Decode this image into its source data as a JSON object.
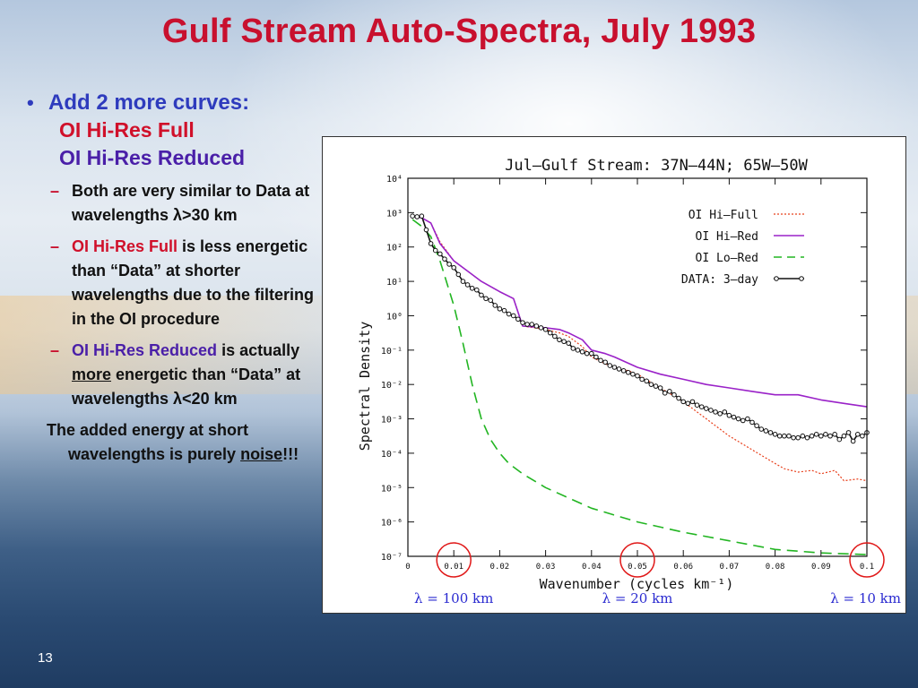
{
  "slide": {
    "title": "Gulf Stream Auto-Spectra, July 1993",
    "bullet1": "Add 2 more curves:",
    "curve_full": "OI Hi-Res Full",
    "curve_reduced": "OI Hi-Res Reduced",
    "sub1_text": "Both are very similar to Data at wavelengths λ>30 km",
    "sub2_lead": "OI Hi-Res Full",
    "sub2_text": "is less energetic than “Data” at shorter wavelengths due to the filtering in the OI procedure",
    "sub3_lead": "OI Hi-Res Reduced",
    "sub3_text_a": "is actually",
    "sub3_emph": "more",
    "sub3_text_b": "energetic than “Data” at wavelengths λ<20 km",
    "final_a": "The added energy at short wavelengths is purely",
    "final_emph": "noise",
    "final_b": "!!!",
    "page_number": "13"
  },
  "chart_data": {
    "type": "line",
    "title": "Jul–Gulf Stream: 37N–44N; 65W–50W",
    "xlabel": "Wavenumber (cycles km⁻¹)",
    "ylabel": "Spectral Density",
    "xlim": [
      0,
      0.1
    ],
    "ylim_exp": [
      -7,
      4
    ],
    "yscale": "log",
    "xticks": [
      "0",
      "0.01",
      "0.02",
      "0.03",
      "0.04",
      "0.05",
      "0.06",
      "0.07",
      "0.08",
      "0.09",
      "0.1"
    ],
    "yticks": [
      "10⁻⁷",
      "10⁻⁶",
      "10⁻⁵",
      "10⁻⁴",
      "10⁻³",
      "10⁻²",
      "10⁻¹",
      "10⁰",
      "10¹",
      "10²",
      "10³",
      "10⁴"
    ],
    "legend_placement": "top-right",
    "series": [
      {
        "name": "OI Hi–Full",
        "color": "#e8401c",
        "style": "dotted",
        "x": [
          0.001,
          0.003,
          0.005,
          0.007,
          0.01,
          0.013,
          0.016,
          0.02,
          0.023,
          0.025,
          0.03,
          0.033,
          0.035,
          0.038,
          0.04,
          0.043,
          0.045,
          0.048,
          0.05,
          0.055,
          0.06,
          0.065,
          0.07,
          0.075,
          0.08,
          0.082,
          0.085,
          0.088,
          0.09,
          0.093,
          0.095,
          0.098,
          0.1
        ],
        "y_exp": [
          2.9,
          2.85,
          2.7,
          2.15,
          1.6,
          1.3,
          1.0,
          0.7,
          0.5,
          -0.3,
          -0.4,
          -0.5,
          -0.6,
          -0.9,
          -1.2,
          -1.4,
          -1.5,
          -1.6,
          -1.7,
          -2.1,
          -2.5,
          -3.0,
          -3.5,
          -3.9,
          -4.3,
          -4.45,
          -4.55,
          -4.5,
          -4.6,
          -4.5,
          -4.8,
          -4.75,
          -4.8
        ]
      },
      {
        "name": "OI Hi–Red",
        "color": "#9a22c8",
        "style": "solid",
        "x": [
          0.001,
          0.003,
          0.005,
          0.007,
          0.01,
          0.013,
          0.016,
          0.02,
          0.023,
          0.025,
          0.03,
          0.033,
          0.035,
          0.038,
          0.04,
          0.043,
          0.045,
          0.05,
          0.055,
          0.06,
          0.065,
          0.07,
          0.075,
          0.08,
          0.085,
          0.09,
          0.095,
          0.1
        ],
        "y_exp": [
          2.9,
          2.85,
          2.7,
          2.1,
          1.6,
          1.3,
          1.0,
          0.7,
          0.5,
          -0.3,
          -0.35,
          -0.4,
          -0.5,
          -0.7,
          -1.0,
          -1.1,
          -1.2,
          -1.5,
          -1.7,
          -1.85,
          -2.0,
          -2.1,
          -2.2,
          -2.3,
          -2.3,
          -2.45,
          -2.55,
          -2.65
        ]
      },
      {
        "name": "OI Lo–Red",
        "color": "#22b522",
        "style": "dashed",
        "x": [
          0.001,
          0.003,
          0.005,
          0.007,
          0.01,
          0.012,
          0.014,
          0.016,
          0.018,
          0.02,
          0.022,
          0.025,
          0.03,
          0.035,
          0.04,
          0.05,
          0.06,
          0.07,
          0.08,
          0.09,
          0.1
        ],
        "y_exp": [
          2.8,
          2.6,
          2.3,
          1.6,
          0.3,
          -0.8,
          -2.0,
          -3.0,
          -3.6,
          -4.0,
          -4.3,
          -4.6,
          -5.0,
          -5.3,
          -5.6,
          -6.0,
          -6.3,
          -6.55,
          -6.8,
          -6.9,
          -6.95
        ]
      },
      {
        "name": "DATA: 3–day",
        "color": "#111111",
        "style": "solid-markers",
        "x": [
          0.001,
          0.002,
          0.003,
          0.004,
          0.005,
          0.006,
          0.007,
          0.008,
          0.009,
          0.01,
          0.011,
          0.012,
          0.013,
          0.014,
          0.015,
          0.016,
          0.017,
          0.018,
          0.019,
          0.02,
          0.021,
          0.022,
          0.023,
          0.024,
          0.025,
          0.026,
          0.027,
          0.028,
          0.029,
          0.03,
          0.031,
          0.032,
          0.033,
          0.034,
          0.035,
          0.036,
          0.037,
          0.038,
          0.039,
          0.04,
          0.041,
          0.042,
          0.043,
          0.044,
          0.045,
          0.046,
          0.047,
          0.048,
          0.049,
          0.05,
          0.051,
          0.052,
          0.053,
          0.054,
          0.055,
          0.056,
          0.057,
          0.058,
          0.059,
          0.06,
          0.061,
          0.062,
          0.063,
          0.064,
          0.065,
          0.066,
          0.067,
          0.068,
          0.069,
          0.07,
          0.071,
          0.072,
          0.073,
          0.074,
          0.075,
          0.076,
          0.077,
          0.078,
          0.079,
          0.08,
          0.081,
          0.082,
          0.083,
          0.084,
          0.085,
          0.086,
          0.087,
          0.088,
          0.089,
          0.09,
          0.091,
          0.092,
          0.093,
          0.094,
          0.095,
          0.096,
          0.097,
          0.098,
          0.099,
          0.1
        ],
        "y_exp": [
          2.9,
          2.88,
          2.9,
          2.5,
          2.1,
          1.9,
          1.8,
          1.65,
          1.5,
          1.4,
          1.2,
          1.0,
          0.9,
          0.8,
          0.75,
          0.6,
          0.5,
          0.45,
          0.3,
          0.2,
          0.15,
          0.05,
          0.0,
          -0.1,
          -0.2,
          -0.25,
          -0.25,
          -0.3,
          -0.35,
          -0.4,
          -0.5,
          -0.6,
          -0.7,
          -0.75,
          -0.8,
          -0.95,
          -1.0,
          -1.05,
          -1.1,
          -1.1,
          -1.2,
          -1.3,
          -1.35,
          -1.45,
          -1.5,
          -1.55,
          -1.6,
          -1.65,
          -1.7,
          -1.75,
          -1.85,
          -1.9,
          -2.0,
          -2.05,
          -2.1,
          -2.25,
          -2.2,
          -2.3,
          -2.4,
          -2.5,
          -2.55,
          -2.5,
          -2.6,
          -2.65,
          -2.7,
          -2.75,
          -2.8,
          -2.85,
          -2.8,
          -2.9,
          -2.95,
          -3.0,
          -3.05,
          -3.0,
          -3.1,
          -3.2,
          -3.3,
          -3.35,
          -3.4,
          -3.45,
          -3.5,
          -3.5,
          -3.5,
          -3.55,
          -3.55,
          -3.5,
          -3.55,
          -3.5,
          -3.45,
          -3.5,
          -3.45,
          -3.5,
          -3.45,
          -3.6,
          -3.5,
          -3.4,
          -3.65,
          -3.45,
          -3.5,
          -3.4
        ]
      }
    ],
    "annotations": [
      {
        "x": 0.01,
        "text": "λ = 100 km"
      },
      {
        "x": 0.05,
        "text": "λ = 20 km"
      },
      {
        "x": 0.1,
        "text": "λ = 10 km"
      }
    ],
    "annotation_color": "#2a2ad0",
    "circle_color": "#e01818"
  }
}
